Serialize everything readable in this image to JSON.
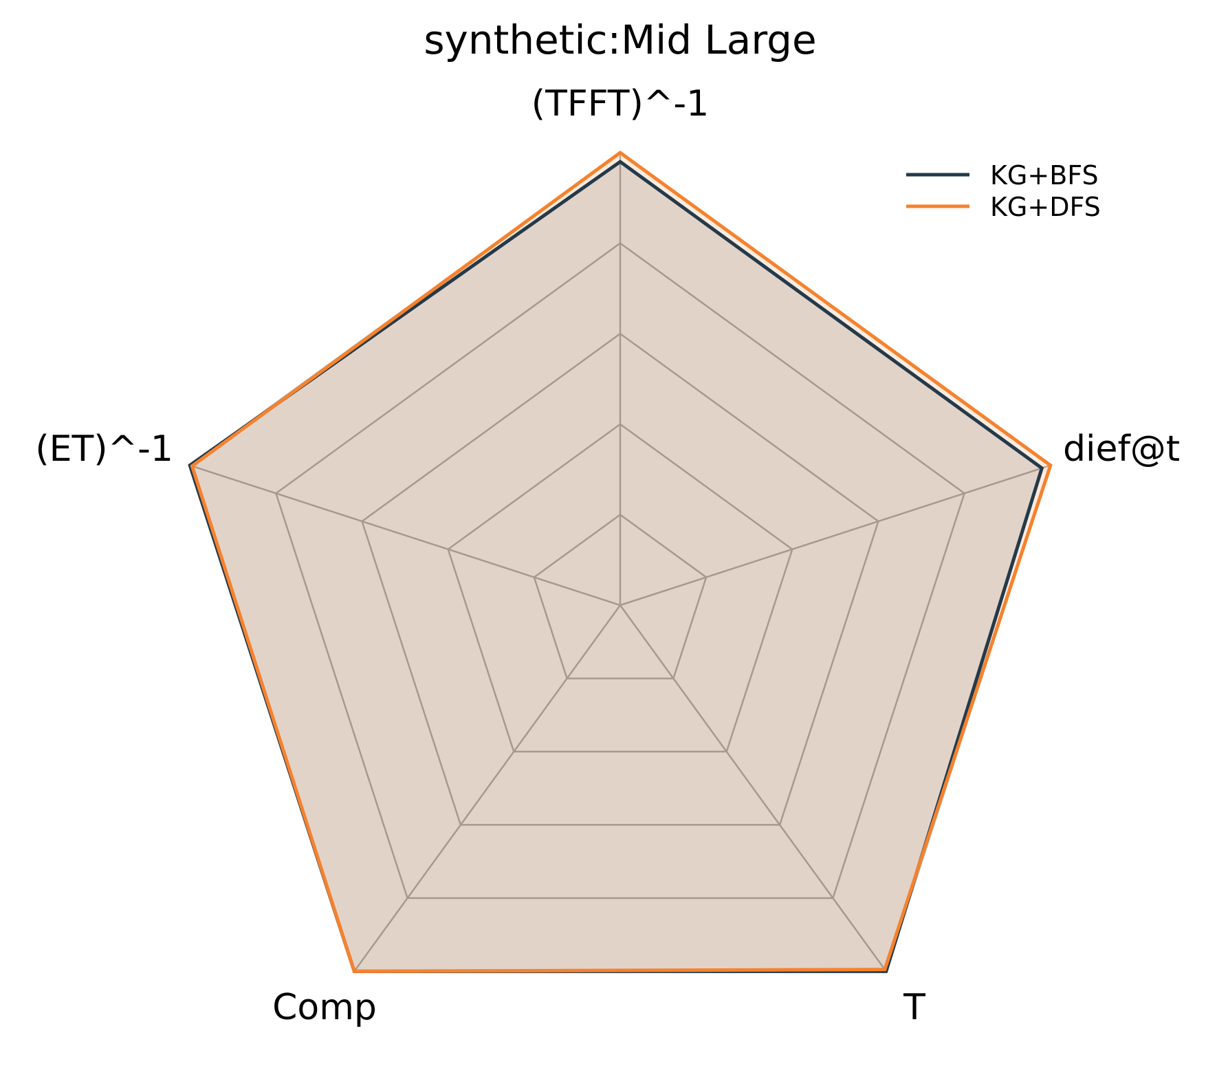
{
  "chart_data": {
    "type": "radar",
    "title": "synthetic:Mid Large",
    "axes": [
      "(TFFT)^-1",
      "dief@t",
      "T",
      "Comp",
      "(ET)^-1"
    ],
    "rlim": [
      0,
      1
    ],
    "grid_levels": [
      0.2,
      0.4,
      0.6,
      0.8,
      1.0
    ],
    "grid": true,
    "legend_position": "top-right",
    "series": [
      {
        "name": "KG+BFS",
        "color": "#243a4a",
        "fill_opacity": 0.15,
        "values": [
          0.98,
          0.98,
          1.0,
          1.0,
          1.0
        ]
      },
      {
        "name": "KG+DFS",
        "color": "#f5822e",
        "fill_opacity": 0.15,
        "values": [
          1.0,
          1.0,
          0.995,
          1.0,
          0.995
        ]
      }
    ]
  }
}
